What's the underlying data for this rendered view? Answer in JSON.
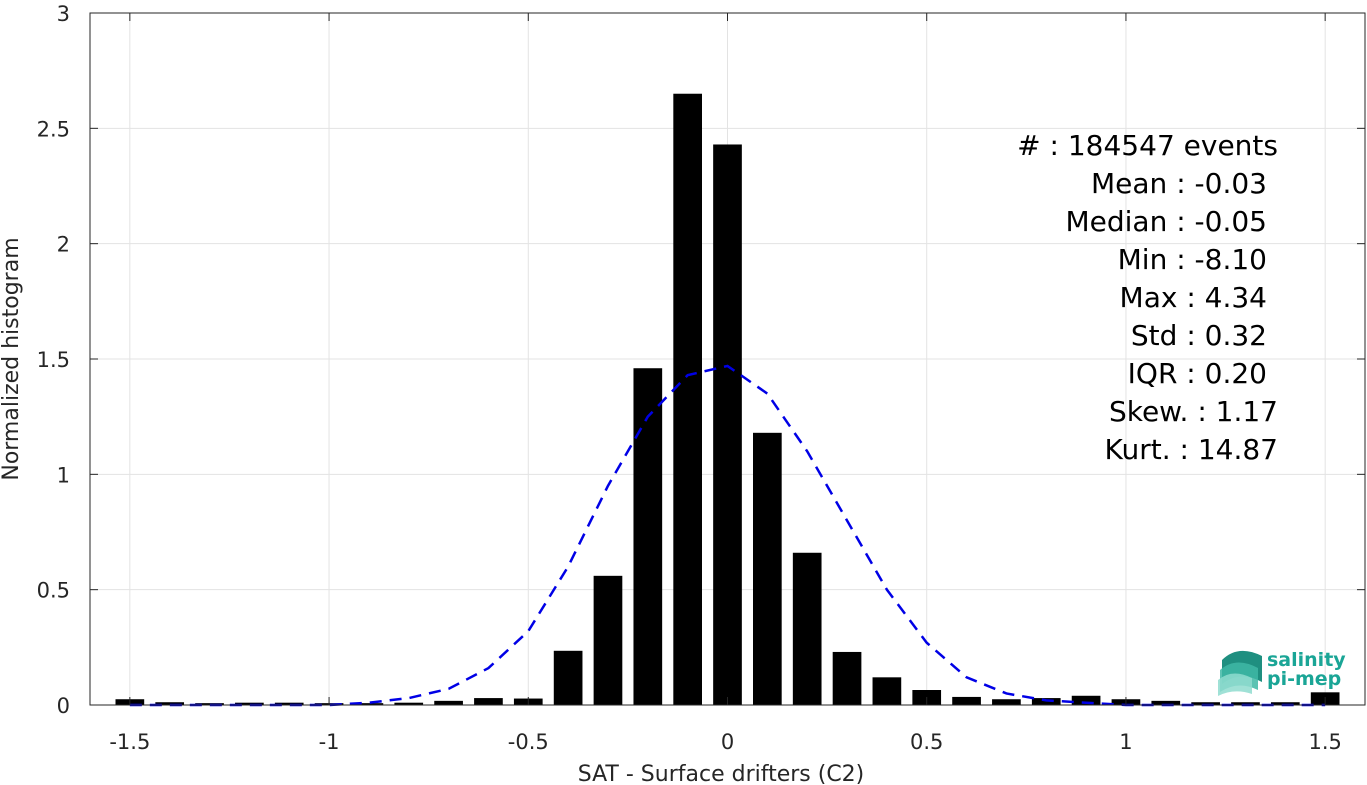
{
  "chart_data": {
    "type": "bar",
    "title": "",
    "xlabel": "SAT - Surface drifters (C2)",
    "ylabel": "Normalized histogram",
    "xlim": [
      -1.6,
      1.6
    ],
    "ylim": [
      0,
      3
    ],
    "xticks": [
      -1.5,
      -1,
      -0.5,
      0,
      0.5,
      1,
      1.5
    ],
    "xtick_labels": [
      "-1.5",
      "-1",
      "-0.5",
      "0",
      "0.5",
      "1",
      "1.5"
    ],
    "yticks": [
      0,
      0.5,
      1,
      1.5,
      2,
      2.5,
      3
    ],
    "ytick_labels": [
      "0",
      "0.5",
      "1",
      "1.5",
      "2",
      "2.5",
      "3"
    ],
    "grid": true,
    "bar_color": "#000000",
    "fit_color": "#0000e6",
    "bars": {
      "x": [
        -1.5,
        -1.4,
        -1.3,
        -1.2,
        -1.1,
        -1.0,
        -0.9,
        -0.8,
        -0.7,
        -0.6,
        -0.5,
        -0.4,
        -0.3,
        -0.2,
        -0.1,
        0.0,
        0.1,
        0.2,
        0.3,
        0.4,
        0.5,
        0.6,
        0.7,
        0.8,
        0.9,
        1.0,
        1.1,
        1.2,
        1.3,
        1.4,
        1.5
      ],
      "values": [
        0.025,
        0.012,
        0.008,
        0.01,
        0.01,
        0.008,
        0.008,
        0.01,
        0.018,
        0.03,
        0.028,
        0.235,
        0.56,
        1.46,
        2.65,
        2.43,
        1.18,
        0.66,
        0.23,
        0.12,
        0.065,
        0.035,
        0.025,
        0.03,
        0.04,
        0.025,
        0.018,
        0.012,
        0.012,
        0.012,
        0.055
      ]
    },
    "fit": {
      "style": "dashed",
      "x": [
        -1.5,
        -1.4,
        -1.3,
        -1.2,
        -1.1,
        -1.0,
        -0.9,
        -0.8,
        -0.7,
        -0.6,
        -0.5,
        -0.4,
        -0.3,
        -0.2,
        -0.1,
        0.0,
        0.1,
        0.2,
        0.3,
        0.4,
        0.5,
        0.6,
        0.7,
        0.8,
        0.9,
        1.0,
        1.1,
        1.2,
        1.3,
        1.4,
        1.5
      ],
      "y": [
        0.0,
        0.0,
        0.0,
        0.0,
        0.0,
        0.0,
        0.01,
        0.03,
        0.07,
        0.16,
        0.32,
        0.6,
        0.95,
        1.25,
        1.43,
        1.47,
        1.35,
        1.1,
        0.8,
        0.5,
        0.27,
        0.12,
        0.05,
        0.02,
        0.01,
        0.0,
        0.0,
        0.0,
        0.0,
        0.0,
        0.0
      ]
    },
    "stats": [
      "#  : 184547 events",
      "Mean : -0.03",
      "Median : -0.05",
      "Min : -8.10",
      "Max : 4.34",
      "Std : 0.32",
      "IQR : 0.20",
      "Skew. : 1.17",
      "Kurt. : 14.87"
    ],
    "legend": "none"
  },
  "logo": {
    "line1": "salinity",
    "line2": "pi-mep",
    "color": "#1aa596"
  }
}
